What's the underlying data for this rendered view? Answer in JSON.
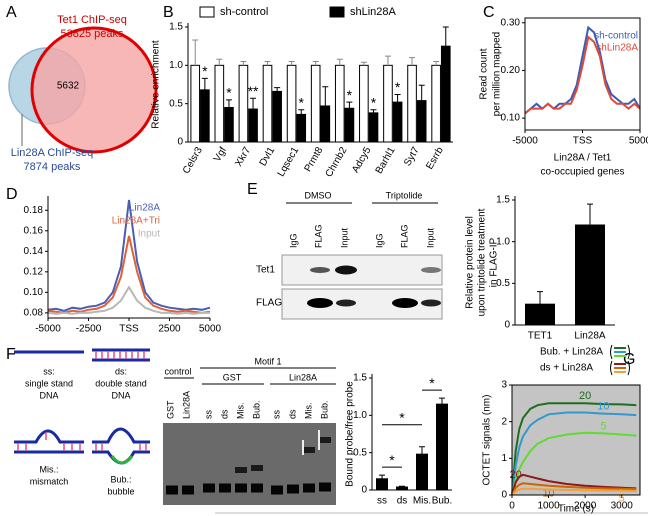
{
  "panel_labels": [
    "A",
    "B",
    "C",
    "D",
    "E",
    "F",
    "G"
  ],
  "venn": {
    "set1_name": "Tet1 ChIP-seq",
    "set1_count": "53825 peaks",
    "overlap": "5632",
    "set2_name": "Lin28A  ChIP-seq",
    "set2_count": "7874 peaks"
  },
  "blot": {
    "conditions": [
      "DMSO",
      "Triptolide"
    ],
    "lanes": [
      "IgG",
      "FLAG",
      "Input",
      "IgG",
      "FLAG",
      "Input"
    ],
    "rows": [
      "Tet1",
      "FLAG"
    ]
  },
  "schematic": {
    "probes": [
      {
        "label": "ss:",
        "desc": [
          "single stand",
          "DNA"
        ]
      },
      {
        "label": "ds:",
        "desc": [
          "double stand",
          "DNA"
        ]
      },
      {
        "label": "Mis.:",
        "desc": [
          "mismatch"
        ]
      },
      {
        "label": "Bub.:",
        "desc": [
          "bubble"
        ]
      }
    ]
  },
  "gel": {
    "control": "control",
    "motif": "Motif 1",
    "groups": [
      "GST",
      "Lin28A"
    ],
    "lanes": [
      "GST",
      "Lin28A",
      "ss",
      "ds",
      "Mis.",
      "Bub.",
      "ss",
      "ds",
      "Mis.",
      "Bub."
    ]
  },
  "chart_data": [
    {
      "type": "bar",
      "ylabel": "Relative enrichment",
      "categories": [
        "Celsr3",
        "Vgf",
        "Xkr7",
        "Dvl1",
        "Lqsec1",
        "Prmt8",
        "Chrnb2",
        "Adcy5",
        "Barhl1",
        "Syt7",
        "Esrrb"
      ],
      "series": [
        {
          "name": "sh-control",
          "color": "#ffffff",
          "values": [
            1,
            1,
            1,
            1,
            1,
            1,
            1,
            1,
            1,
            1,
            1
          ],
          "errors": [
            0.33,
            0.08,
            0.05,
            0.05,
            0.05,
            0.05,
            0.08,
            0.04,
            0.12,
            0.1,
            0.05
          ]
        },
        {
          "name": "shLin28A",
          "color": "#000000",
          "values": [
            0.68,
            0.45,
            0.43,
            0.66,
            0.36,
            0.47,
            0.44,
            0.38,
            0.52,
            0.54,
            1.25
          ],
          "errors": [
            0.15,
            0.1,
            0.14,
            0.05,
            0.06,
            0.25,
            0.08,
            0.04,
            0.1,
            0.2,
            0.25
          ]
        }
      ],
      "significance": [
        "*",
        "*",
        "**",
        null,
        "*",
        null,
        "*",
        "*",
        "*",
        null,
        null
      ],
      "ylim": [
        0,
        1.5
      ],
      "yticks": [
        0,
        0.5,
        {
          "value": 1,
          "label": "1.0"
        },
        1.5
      ]
    },
    {
      "type": "line",
      "ylabel": [
        "Read count",
        "per million mapped"
      ],
      "xlabel": [
        "Lin28A / Tet1",
        "co-occupied genes"
      ],
      "x": [
        -5000,
        -4500,
        -4000,
        -3500,
        -3000,
        -2500,
        -2000,
        -1500,
        -1000,
        -500,
        0,
        500,
        1000,
        1500,
        2000,
        2500,
        3000,
        3500,
        4000,
        4500,
        5000
      ],
      "series": [
        {
          "name": "sh-control",
          "color": "#3b5bb5",
          "values": [
            0.11,
            0.12,
            0.13,
            0.12,
            0.13,
            0.12,
            0.13,
            0.13,
            0.14,
            0.17,
            0.23,
            0.29,
            0.28,
            0.24,
            0.18,
            0.15,
            0.14,
            0.13,
            0.13,
            0.14,
            0.12
          ]
        },
        {
          "name": "shLin28A",
          "color": "#e0483a",
          "values": [
            0.11,
            0.12,
            0.12,
            0.12,
            0.13,
            0.12,
            0.12,
            0.13,
            0.13,
            0.16,
            0.21,
            0.27,
            0.26,
            0.23,
            0.17,
            0.14,
            0.13,
            0.13,
            0.12,
            0.13,
            0.12
          ]
        }
      ],
      "xlim": [
        -5000,
        5000
      ],
      "xticks": [
        -5000,
        {
          "value": 0,
          "label": "TSS"
        },
        5000
      ],
      "ylim": [
        0.075,
        0.31
      ],
      "yticks": [
        {
          "value": 0.1,
          "label": "0.10"
        },
        {
          "value": 0.2,
          "label": "0.20"
        },
        {
          "value": 0.3,
          "label": "0.30"
        }
      ]
    },
    {
      "type": "line",
      "x": [
        -5000,
        -4500,
        -4000,
        -3500,
        -3000,
        -2500,
        -2000,
        -1500,
        -1000,
        -500,
        0,
        500,
        1000,
        1500,
        2000,
        2500,
        3000,
        3500,
        4000,
        4500,
        5000
      ],
      "series": [
        {
          "name": "Lin28A",
          "color": "#4a5fb0",
          "values": [
            0.083,
            0.084,
            0.082,
            0.085,
            0.084,
            0.086,
            0.087,
            0.09,
            0.1,
            0.125,
            0.19,
            0.13,
            0.1,
            0.09,
            0.087,
            0.085,
            0.084,
            0.083,
            0.084,
            0.083,
            0.085
          ]
        },
        {
          "name": "Lin28A+Tri",
          "color": "#e0603a",
          "values": [
            0.082,
            0.081,
            0.08,
            0.082,
            0.081,
            0.083,
            0.084,
            0.087,
            0.095,
            0.115,
            0.155,
            0.12,
            0.095,
            0.087,
            0.084,
            0.082,
            0.081,
            0.082,
            0.081,
            0.08,
            0.081
          ]
        },
        {
          "name": "Input",
          "color": "#b8b8b8",
          "values": [
            0.08,
            0.079,
            0.08,
            0.079,
            0.08,
            0.08,
            0.081,
            0.082,
            0.085,
            0.092,
            0.105,
            0.092,
            0.085,
            0.082,
            0.08,
            0.08,
            0.079,
            0.08,
            0.079,
            0.08,
            0.08
          ]
        }
      ],
      "xlim": [
        -5000,
        5000
      ],
      "xticks": [
        -5000,
        -2500,
        {
          "value": 0,
          "label": "TSS"
        },
        2500,
        5000
      ],
      "ylim": [
        0.075,
        0.19
      ],
      "yticks": [
        0.08,
        {
          "value": 0.1,
          "label": "0.10"
        },
        0.12,
        0.14,
        0.16,
        0.18
      ]
    },
    {
      "type": "bar",
      "ylabel": [
        "Relative protein level",
        "upon triptolide treatment",
        "in FLAG-IP"
      ],
      "categories": [
        "TET1",
        "Lin28A"
      ],
      "values": [
        0.25,
        1.2
      ],
      "errors": [
        0.15,
        0.25
      ],
      "color": "#000000",
      "ylim": [
        0,
        1.5
      ],
      "yticks": [
        0,
        0.5,
        {
          "value": 1,
          "label": "1.0"
        },
        1.5
      ]
    },
    {
      "type": "bar",
      "ylabel": "Bound probe/free probe",
      "categories": [
        "ss",
        "ds",
        "Mis.",
        "Bub."
      ],
      "values": [
        0.15,
        0.04,
        0.48,
        1.15
      ],
      "errors": [
        0.05,
        0.01,
        0.1,
        0.08
      ],
      "color": "#000000",
      "comparisons": [
        "*",
        "*",
        "*"
      ],
      "ylim": [
        0,
        1.5
      ],
      "yticks": [
        0,
        0.5,
        {
          "value": 1,
          "label": "1.0"
        },
        1.5
      ]
    },
    {
      "type": "line",
      "ylabel": "OCTET signals (nm)",
      "xlabel": "Time (s)",
      "legend": [
        "Bub. + Lin28A",
        "ds + Lin28A"
      ],
      "x": [
        0,
        100,
        200,
        300,
        500,
        700,
        1000,
        1500,
        2000,
        2500,
        3000,
        3400
      ],
      "series": [
        {
          "name": "20",
          "color": "#1f6e1f",
          "values": [
            0,
            1.2,
            1.8,
            2.1,
            2.35,
            2.45,
            2.5,
            2.5,
            2.5,
            2.48,
            2.47,
            2.45
          ]
        },
        {
          "name": "10",
          "color": "#3399cc",
          "values": [
            0,
            0.8,
            1.3,
            1.6,
            1.9,
            2.05,
            2.2,
            2.25,
            2.25,
            2.22,
            2.2,
            2.18
          ]
        },
        {
          "name": "5",
          "color": "#5fdc2f",
          "values": [
            0,
            0.4,
            0.7,
            0.9,
            1.2,
            1.4,
            1.55,
            1.65,
            1.7,
            1.68,
            1.65,
            1.62
          ]
        },
        {
          "name": "20",
          "color": "#8b1a1a",
          "values": [
            0,
            0.35,
            0.5,
            0.55,
            0.5,
            0.45,
            0.38,
            0.3,
            0.25,
            0.22,
            0.2,
            0.18
          ]
        },
        {
          "name": "10",
          "color": "#cc6600",
          "values": [
            0,
            0.2,
            0.28,
            0.32,
            0.3,
            0.28,
            0.25,
            0.22,
            0.2,
            0.18,
            0.17,
            0.16
          ]
        },
        {
          "name": "5",
          "color": "#f0a040",
          "values": [
            0,
            0.1,
            0.15,
            0.17,
            0.17,
            0.16,
            0.15,
            0.14,
            0.13,
            0.12,
            0.12,
            0.11
          ]
        }
      ],
      "xlim": [
        0,
        3500
      ],
      "xticks": [
        0,
        1000,
        2000,
        3000
      ],
      "ylim": [
        0,
        3
      ],
      "yticks": [
        0,
        1,
        2,
        3
      ]
    }
  ]
}
